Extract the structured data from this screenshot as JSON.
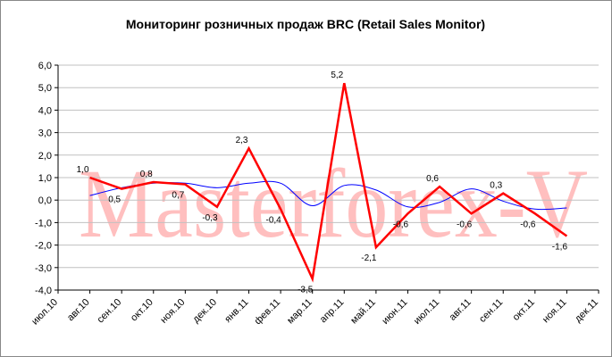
{
  "chart_data": {
    "type": "line",
    "title": "Мониторинг розничных продаж BRC (Retail Sales Monitor)",
    "watermark": "Masterforex-V",
    "categories": [
      "июл.10",
      "авг.10",
      "сен.10",
      "окт.10",
      "ноя.10",
      "дек.10",
      "янв.11",
      "фев.11",
      "мар.11",
      "апр.11",
      "май.11",
      "июн.11",
      "июл.11",
      "авг.11",
      "сен.11",
      "окт.11",
      "ноя.11",
      "дек.11"
    ],
    "series": [
      {
        "color": "#0000ff",
        "smooth": true,
        "values": [
          null,
          0.2,
          0.55,
          0.75,
          0.75,
          0.55,
          0.75,
          0.75,
          -0.25,
          0.65,
          0.45,
          -0.3,
          -0.1,
          0.5,
          -0.05,
          -0.4,
          -0.35,
          null
        ]
      },
      {
        "color": "#ff0000",
        "smooth": false,
        "values": [
          null,
          1.0,
          0.5,
          0.8,
          0.7,
          -0.3,
          2.3,
          -0.4,
          -3.5,
          5.2,
          -2.1,
          -0.6,
          0.6,
          -0.6,
          0.3,
          -0.6,
          -1.6,
          null
        ],
        "value_labels": [
          null,
          "1,0",
          "0,5",
          "0,8",
          "0,7",
          "-0,3",
          "2,3",
          "-0,4",
          "-3,5",
          "5,2",
          "-2,1",
          "-0,6",
          "0,6",
          "-0,6",
          "0,3",
          "-0,6",
          "-1,6",
          null
        ]
      }
    ],
    "ylim": [
      -4,
      6
    ],
    "yticks": [
      {
        "value": -4,
        "label": "-4,0"
      },
      {
        "value": -3,
        "label": "-3,0"
      },
      {
        "value": -2,
        "label": "-2,0"
      },
      {
        "value": -1,
        "label": "-1,0"
      },
      {
        "value": 0,
        "label": "0,0"
      },
      {
        "value": 1,
        "label": "1,0"
      },
      {
        "value": 2,
        "label": "2,0"
      },
      {
        "value": 3,
        "label": "3,0"
      },
      {
        "value": 4,
        "label": "4,0"
      },
      {
        "value": 5,
        "label": "5,0"
      },
      {
        "value": 6,
        "label": "6,0"
      }
    ],
    "grid": true
  }
}
